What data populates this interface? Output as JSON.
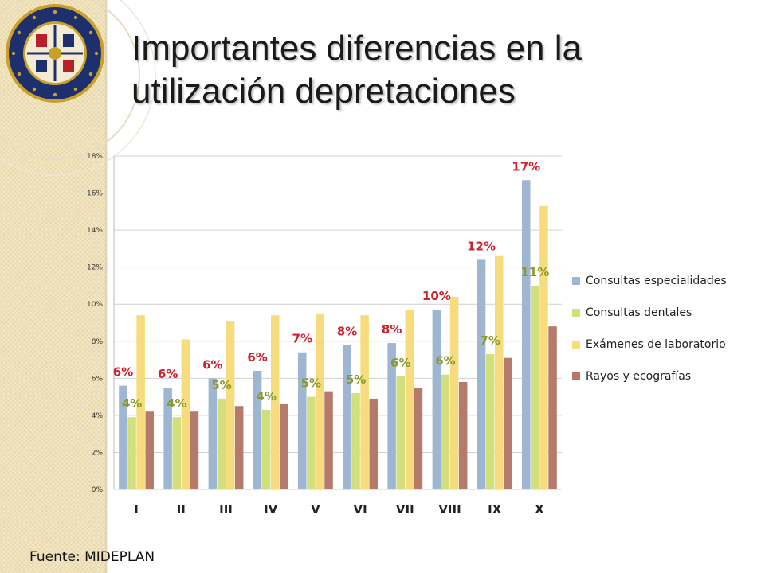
{
  "slide": {
    "title": "Importantes diferencias en la utilización depretaciones",
    "source": "Fuente: MIDEPLAN"
  },
  "chart_data": {
    "type": "bar",
    "categories": [
      "I",
      "II",
      "III",
      "IV",
      "V",
      "VI",
      "VII",
      "VIII",
      "IX",
      "X"
    ],
    "ylim": [
      0,
      18
    ],
    "y_ticks": [
      "0%",
      "2%",
      "4%",
      "6%",
      "8%",
      "10%",
      "12%",
      "14%",
      "16%",
      "18%"
    ],
    "grid": true,
    "legend_position": "right",
    "series": [
      {
        "name": "Consultas especialidades",
        "color": "#9fb6d2",
        "values": [
          5.6,
          5.5,
          6.0,
          6.4,
          7.4,
          7.8,
          7.9,
          9.7,
          12.4,
          16.7
        ],
        "labels": [
          "6%",
          "6%",
          "6%",
          "6%",
          "7%",
          "8%",
          "8%",
          "10%",
          "12%",
          "17%"
        ],
        "label_color": "#d0202a"
      },
      {
        "name": "Consultas dentales",
        "color": "#d3de7c",
        "values": [
          3.9,
          3.9,
          4.9,
          4.3,
          5.0,
          5.2,
          6.1,
          6.2,
          7.3,
          11.0
        ],
        "labels": [
          "4%",
          "4%",
          "5%",
          "4%",
          "5%",
          "5%",
          "6%",
          "6%",
          "7%",
          "11%"
        ],
        "label_color": "#8a9a2a"
      },
      {
        "name": "Exámenes de laboratorio",
        "color": "#f6dc7c",
        "values": [
          9.4,
          8.1,
          9.1,
          9.4,
          9.5,
          9.4,
          9.7,
          10.4,
          12.6,
          15.3
        ]
      },
      {
        "name": "Rayos y ecografías",
        "color": "#b47a6b",
        "values": [
          4.2,
          4.2,
          4.5,
          4.6,
          5.3,
          4.9,
          5.5,
          5.8,
          7.1,
          8.8
        ]
      }
    ]
  }
}
